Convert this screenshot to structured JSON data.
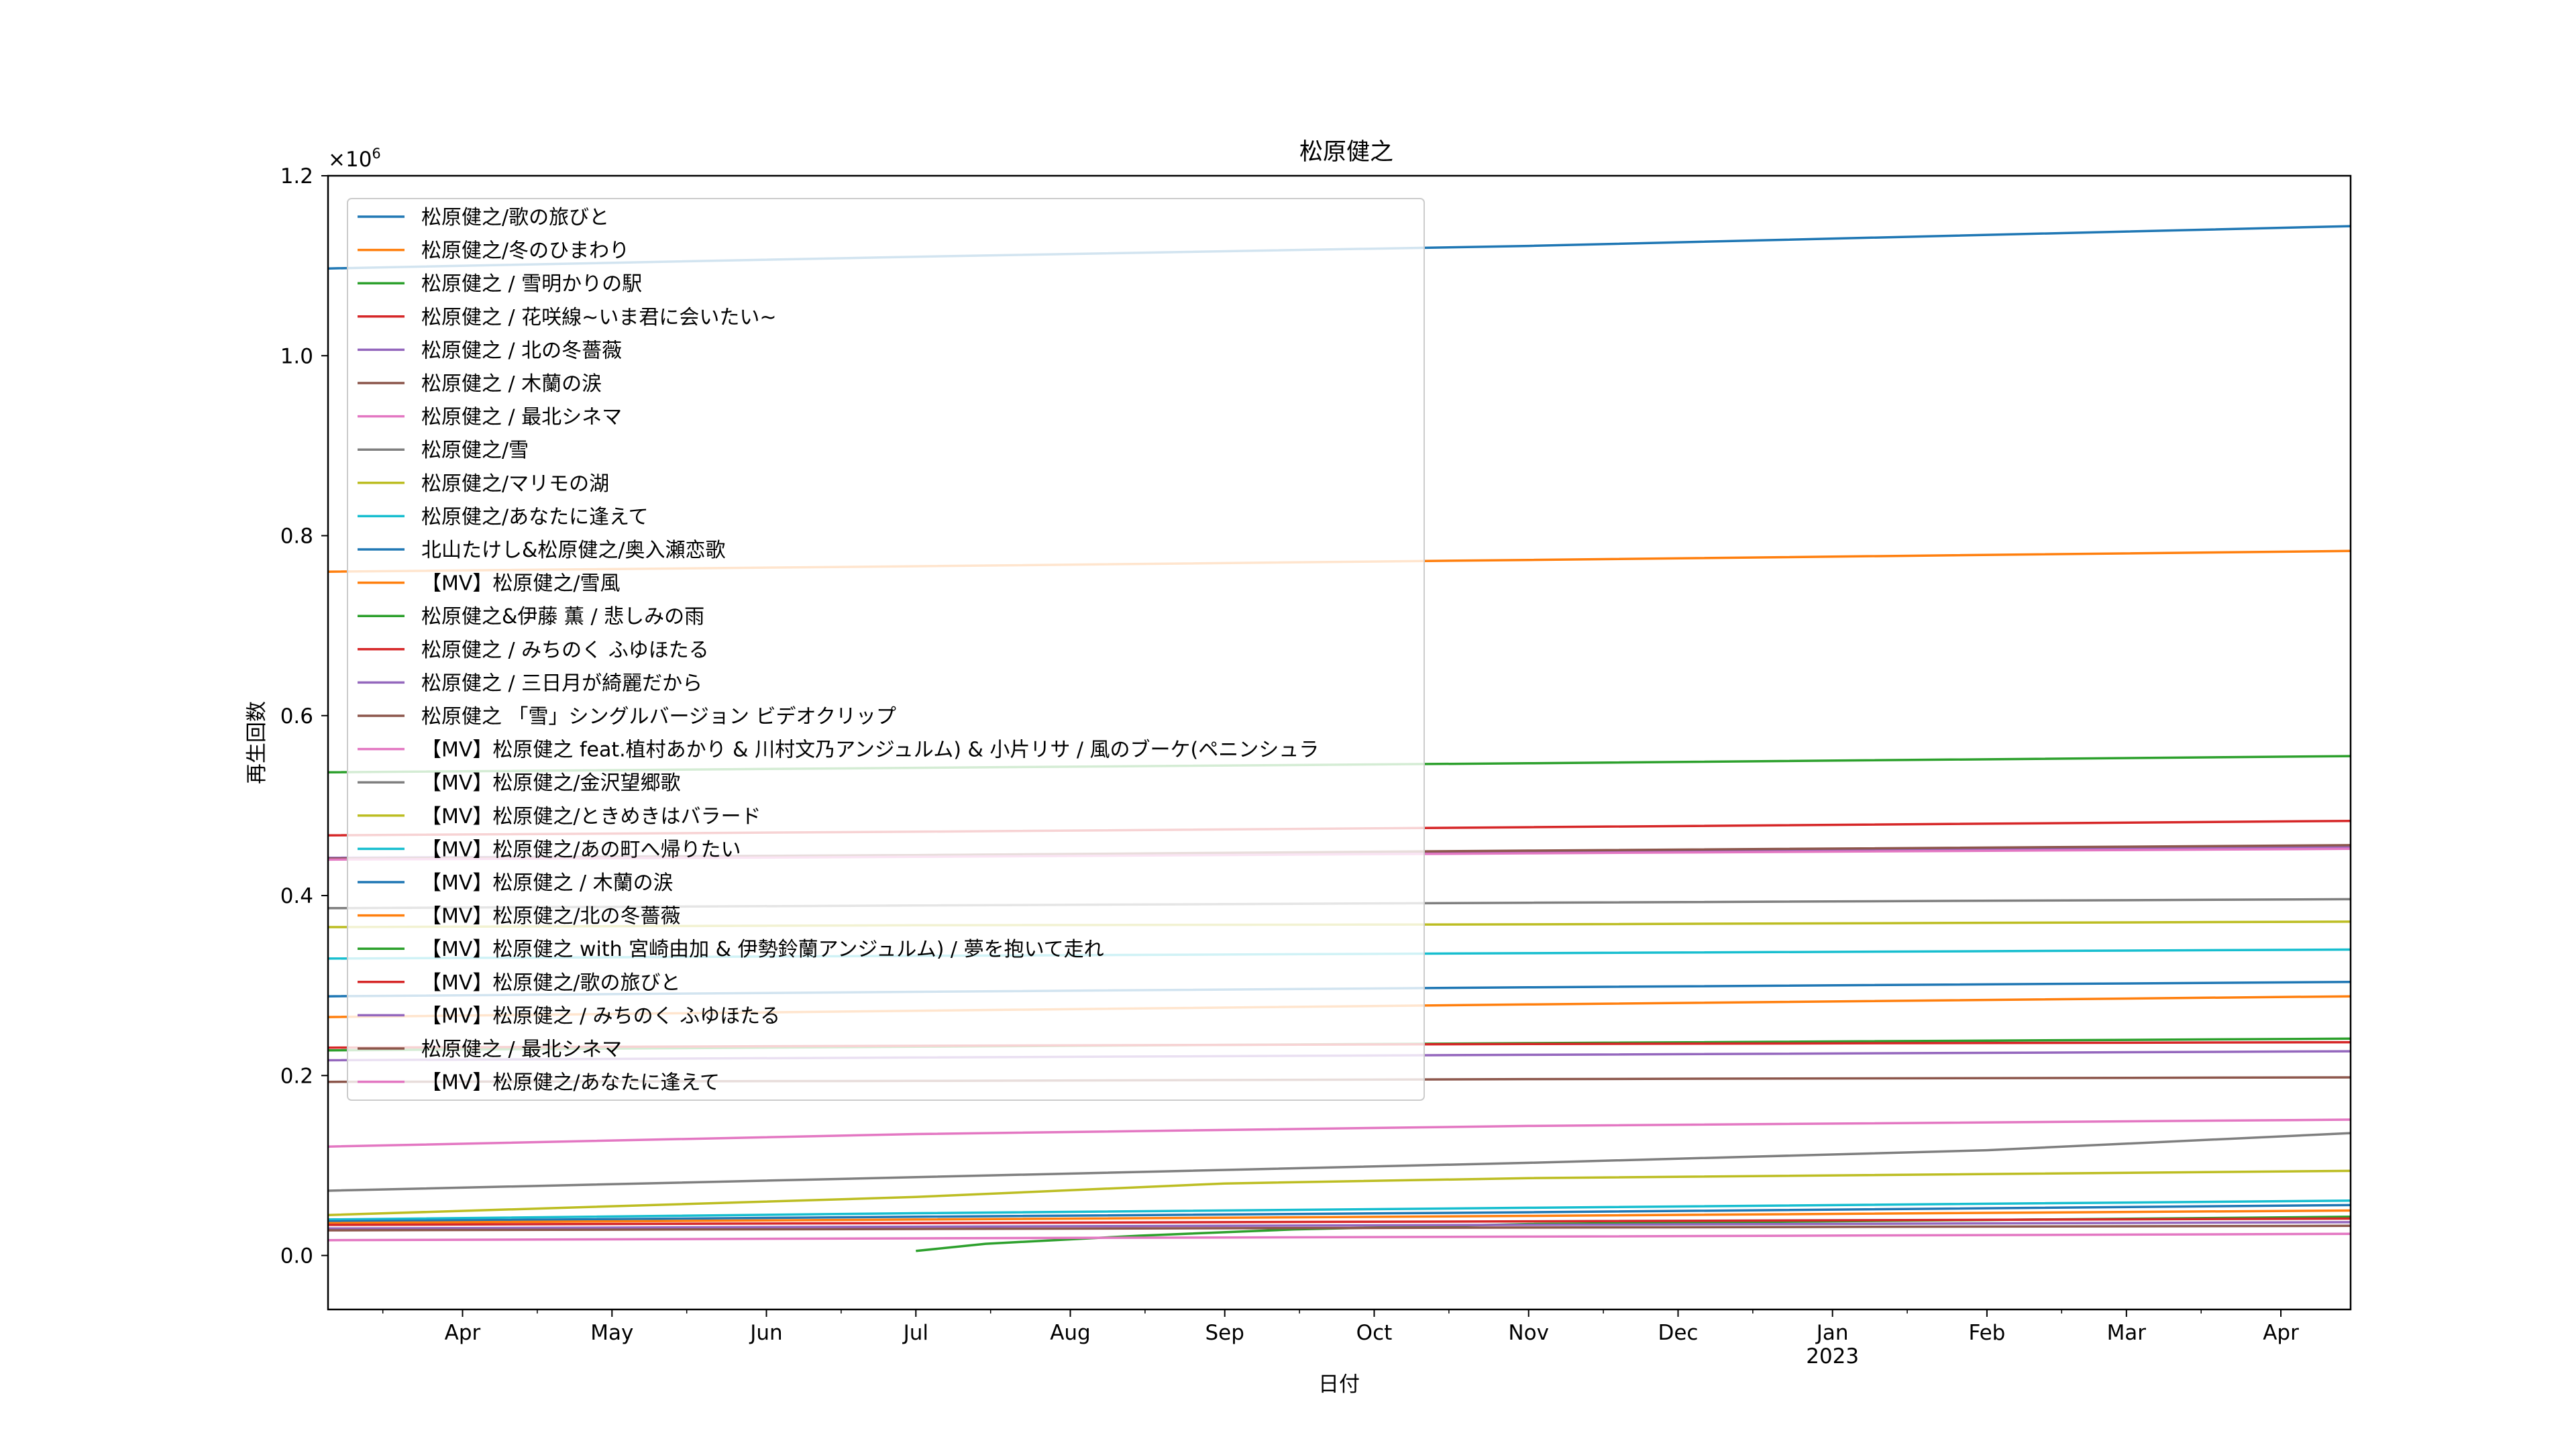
{
  "chart_data": {
    "type": "line",
    "title": "松原健之",
    "xlabel": "日付",
    "ylabel": "再生回数",
    "y_scale_label": "×10",
    "y_scale_exp": "6",
    "xlim": [
      "2022-03-05",
      "2023-04-15"
    ],
    "ylim": [
      -60000,
      1200000
    ],
    "yticks": [
      0,
      200000,
      400000,
      600000,
      800000,
      1000000,
      1200000
    ],
    "ytick_labels": [
      "0.0",
      "0.2",
      "0.4",
      "0.6",
      "0.8",
      "1.0",
      "1.2"
    ],
    "xticks": [
      {
        "date": "2022-04-01",
        "label": "Apr"
      },
      {
        "date": "2022-05-01",
        "label": "May"
      },
      {
        "date": "2022-06-01",
        "label": "Jun"
      },
      {
        "date": "2022-07-01",
        "label": "Jul"
      },
      {
        "date": "2022-08-01",
        "label": "Aug"
      },
      {
        "date": "2022-09-01",
        "label": "Sep"
      },
      {
        "date": "2022-10-01",
        "label": "Oct"
      },
      {
        "date": "2022-11-01",
        "label": "Nov"
      },
      {
        "date": "2022-12-01",
        "label": "Dec"
      },
      {
        "date": "2023-01-01",
        "label": "Jan"
      },
      {
        "date": "2023-02-01",
        "label": "Feb"
      },
      {
        "date": "2023-03-01",
        "label": "Mar"
      },
      {
        "date": "2023-04-01",
        "label": "Apr"
      }
    ],
    "year_label": {
      "date": "2023-01-01",
      "label": "2023"
    },
    "grid": false,
    "legend_position": "upper-left",
    "series": [
      {
        "name": "松原健之/歌の旅びと",
        "color": "#1f77b4",
        "x": [
          "2022-03-05",
          "2022-07-01",
          "2022-11-01",
          "2023-04-15"
        ],
        "y": [
          1097000,
          1110000,
          1122000,
          1144000
        ]
      },
      {
        "name": "松原健之/冬のひまわり",
        "color": "#ff7f0e",
        "x": [
          "2022-03-05",
          "2022-07-01",
          "2022-11-01",
          "2023-04-15"
        ],
        "y": [
          760000,
          766000,
          773000,
          783000
        ]
      },
      {
        "name": "松原健之 / 雪明かりの駅",
        "color": "#2ca02c",
        "x": [
          "2022-03-05",
          "2022-07-01",
          "2022-11-01",
          "2023-04-15"
        ],
        "y": [
          537000,
          542000,
          547000,
          555000
        ]
      },
      {
        "name": "松原健之 / 花咲線~いま君に会いたい~",
        "color": "#d62728",
        "x": [
          "2022-03-05",
          "2022-07-01",
          "2022-11-01",
          "2023-04-15"
        ],
        "y": [
          467000,
          471000,
          476000,
          483000
        ]
      },
      {
        "name": "松原健之 / 北の冬薔薇",
        "color": "#9467bd",
        "x": [
          "2022-03-05",
          "2022-07-01",
          "2022-11-01",
          "2023-04-15"
        ],
        "y": [
          442000,
          445000,
          449000,
          454000
        ]
      },
      {
        "name": "松原健之 / 木蘭の涙",
        "color": "#8c564b",
        "x": [
          "2022-03-05",
          "2022-07-01",
          "2022-11-01",
          "2023-04-15"
        ],
        "y": [
          441000,
          445000,
          450000,
          456000
        ]
      },
      {
        "name": "松原健之 / 最北シネマ",
        "color": "#e377c2",
        "x": [
          "2022-03-05",
          "2022-07-01",
          "2022-11-01",
          "2023-04-15"
        ],
        "y": [
          440000,
          443000,
          447000,
          452000
        ]
      },
      {
        "name": "松原健之/雪",
        "color": "#7f7f7f",
        "x": [
          "2022-03-05",
          "2022-07-01",
          "2022-11-01",
          "2023-04-15"
        ],
        "y": [
          386000,
          389000,
          392000,
          396000
        ]
      },
      {
        "name": "松原健之/マリモの湖",
        "color": "#bcbd22",
        "x": [
          "2022-03-05",
          "2022-07-01",
          "2022-11-01",
          "2023-04-15"
        ],
        "y": [
          365000,
          367000,
          368000,
          371000
        ]
      },
      {
        "name": "松原健之/あなたに逢えて",
        "color": "#17becf",
        "x": [
          "2022-03-05",
          "2022-07-01",
          "2022-11-01",
          "2023-04-15"
        ],
        "y": [
          330000,
          333000,
          336000,
          340000
        ]
      },
      {
        "name": "北山たけし&松原健之/奥入瀬恋歌",
        "color": "#1f77b4",
        "x": [
          "2022-03-05",
          "2022-07-01",
          "2022-11-01",
          "2023-04-15"
        ],
        "y": [
          288000,
          293000,
          298000,
          304000
        ]
      },
      {
        "name": "【MV】松原健之/雪風",
        "color": "#ff7f0e",
        "x": [
          "2022-03-05",
          "2022-07-01",
          "2022-11-01",
          "2023-04-15"
        ],
        "y": [
          265000,
          272000,
          279000,
          288000
        ]
      },
      {
        "name": "松原健之&伊藤 薫 / 悲しみの雨",
        "color": "#2ca02c",
        "x": [
          "2022-03-05",
          "2022-07-01",
          "2022-11-01",
          "2023-04-15"
        ],
        "y": [
          228000,
          232000,
          236000,
          241000
        ]
      },
      {
        "name": "松原健之 / みちのく ふゆほたる",
        "color": "#d62728",
        "x": [
          "2022-03-05",
          "2022-07-01",
          "2022-11-01",
          "2023-04-15"
        ],
        "y": [
          231000,
          233000,
          235000,
          237000
        ]
      },
      {
        "name": "松原健之 / 三日月が綺麗だから",
        "color": "#9467bd",
        "x": [
          "2022-03-05",
          "2022-07-01",
          "2022-11-01",
          "2023-04-15"
        ],
        "y": [
          217000,
          220000,
          223000,
          227000
        ]
      },
      {
        "name": "松原健之 「雪」シングルバージョン ビデオクリップ",
        "color": "#8c564b",
        "x": [
          "2022-03-05",
          "2022-07-01",
          "2022-11-01",
          "2023-04-15"
        ],
        "y": [
          193000,
          194000,
          196000,
          198000
        ]
      },
      {
        "name": "【MV】松原健之 feat.植村あかり & 川村文乃アンジュルム) & 小片リサ / 風のブーケ(ペニンシュラ",
        "color": "#e377c2",
        "x": [
          "2022-03-05",
          "2022-07-01",
          "2022-11-01",
          "2023-04-15"
        ],
        "y": [
          121000,
          135000,
          144000,
          151000
        ]
      },
      {
        "name": "【MV】松原健之/金沢望郷歌",
        "color": "#7f7f7f",
        "x": [
          "2022-03-05",
          "2022-07-01",
          "2022-11-01",
          "2023-02-01",
          "2023-04-15"
        ],
        "y": [
          72000,
          87000,
          103000,
          117000,
          136000
        ]
      },
      {
        "name": "【MV】松原健之/ときめきはバラード",
        "color": "#bcbd22",
        "x": [
          "2022-03-05",
          "2022-07-01",
          "2022-09-01",
          "2022-11-01",
          "2023-04-15"
        ],
        "y": [
          45000,
          65000,
          80000,
          86000,
          94000
        ]
      },
      {
        "name": "【MV】松原健之/あの町へ帰りたい",
        "color": "#17becf",
        "x": [
          "2022-03-05",
          "2022-07-01",
          "2022-11-01",
          "2023-04-15"
        ],
        "y": [
          40000,
          47000,
          53000,
          61000
        ]
      },
      {
        "name": "【MV】松原健之 / 木蘭の涙",
        "color": "#1f77b4",
        "x": [
          "2022-03-05",
          "2022-07-01",
          "2022-11-01",
          "2023-04-15"
        ],
        "y": [
          38000,
          43000,
          48000,
          56000
        ]
      },
      {
        "name": "【MV】松原健之/北の冬薔薇",
        "color": "#ff7f0e",
        "x": [
          "2022-03-05",
          "2022-07-01",
          "2022-11-01",
          "2023-04-15"
        ],
        "y": [
          36000,
          40000,
          44000,
          50000
        ]
      },
      {
        "name": "【MV】松原健之 with 宮崎由加 & 伊勢鈴蘭アンジュルム) / 夢を抱いて走れ",
        "color": "#2ca02c",
        "x": [
          "2022-07-01",
          "2022-07-15",
          "2022-08-15",
          "2022-09-15",
          "2022-11-01",
          "2023-04-15"
        ],
        "y": [
          5000,
          13000,
          22000,
          29000,
          35000,
          43000
        ]
      },
      {
        "name": "【MV】松原健之/歌の旅びと",
        "color": "#d62728",
        "x": [
          "2022-03-05",
          "2022-07-01",
          "2022-11-01",
          "2023-04-15"
        ],
        "y": [
          34000,
          36000,
          38000,
          41000
        ]
      },
      {
        "name": "【MV】松原健之 / みちのく ふゆほたる",
        "color": "#9467bd",
        "x": [
          "2022-03-05",
          "2022-07-01",
          "2022-11-01",
          "2023-04-15"
        ],
        "y": [
          30000,
          32000,
          34000,
          37000
        ]
      },
      {
        "name": "松原健之 / 最北シネマ",
        "color": "#8c564b",
        "x": [
          "2022-03-05",
          "2022-07-01",
          "2022-11-01",
          "2023-04-15"
        ],
        "y": [
          28000,
          29500,
          31000,
          33000
        ]
      },
      {
        "name": "【MV】松原健之/あなたに逢えて",
        "color": "#e377c2",
        "x": [
          "2022-03-05",
          "2022-07-01",
          "2022-11-01",
          "2023-04-15"
        ],
        "y": [
          17000,
          19000,
          21000,
          24000
        ]
      }
    ]
  }
}
